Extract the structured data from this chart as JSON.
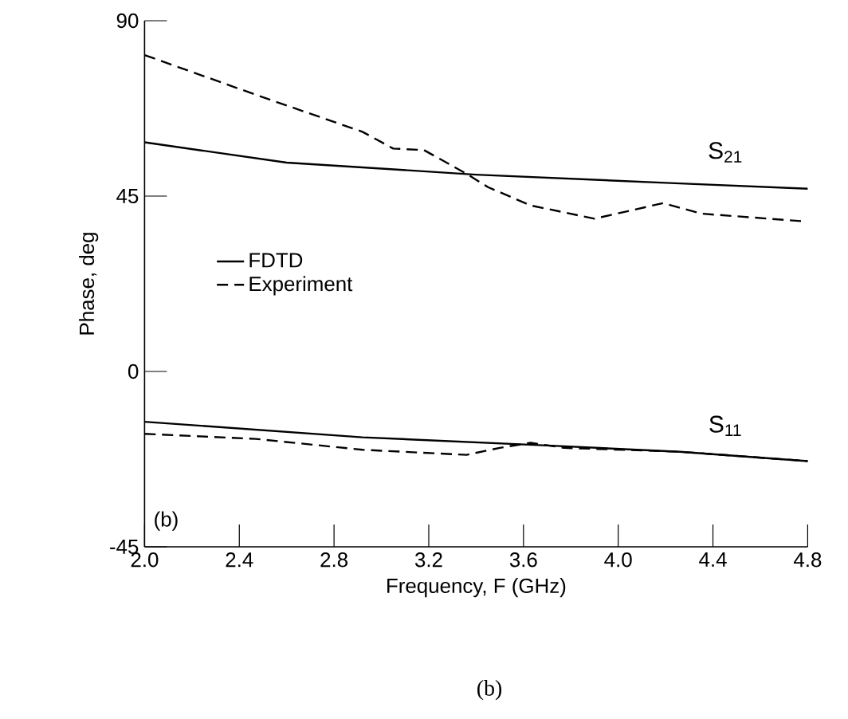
{
  "chart_data": {
    "type": "line",
    "xlabel": "Frequency, F (GHz)",
    "ylabel": "Phase, deg",
    "xlim": [
      2.0,
      4.8
    ],
    "xticks": [
      {
        "value": 2.0,
        "label": "2.0"
      },
      2.4,
      2.8,
      3.2,
      3.6,
      {
        "value": 4.0,
        "label": "4.0"
      },
      4.4,
      4.8
    ],
    "ylim": [
      -45,
      90
    ],
    "yticks": [
      -45,
      0,
      45,
      90
    ],
    "grid": false,
    "legend": "center left",
    "series": [
      {
        "name": "FDTD",
        "color": "#000000",
        "line_style": "solid",
        "x": [
          2.0,
          2.6,
          3.4,
          4.2,
          4.8
        ],
        "values": [
          58.8,
          53.6,
          50.5,
          48.4,
          46.9
        ]
      },
      {
        "name": "Experiment",
        "color": "#000000",
        "line_style": "dashed",
        "x": [
          2.0,
          2.47,
          2.92,
          3.05,
          3.18,
          3.36,
          3.45,
          3.63,
          3.9,
          4.19,
          4.35,
          4.79
        ],
        "values": [
          81.2,
          71,
          61.5,
          57.2,
          56.8,
          50.7,
          47.3,
          42.6,
          39.2,
          43.2,
          40.5,
          38.5
        ]
      },
      {
        "color": "#000000",
        "line_style": "solid",
        "x": [
          2.0,
          2.92,
          3.7,
          4.26,
          4.8
        ],
        "values": [
          -12.9,
          -16.9,
          -19.0,
          -20.6,
          -23.0
        ]
      },
      {
        "color": "#000000",
        "line_style": "dashed",
        "x": [
          2.0,
          2.47,
          2.92,
          3.36,
          3.5,
          3.63,
          3.77,
          4.26,
          4.8
        ],
        "values": [
          -16.0,
          -17.3,
          -20.1,
          -21.4,
          -19.6,
          -18.3,
          -19.6,
          -20.6,
          -23.0
        ]
      }
    ],
    "annotations": [
      "S$_{21}$",
      "S$_{11}$",
      "(b)",
      "(b)"
    ]
  }
}
